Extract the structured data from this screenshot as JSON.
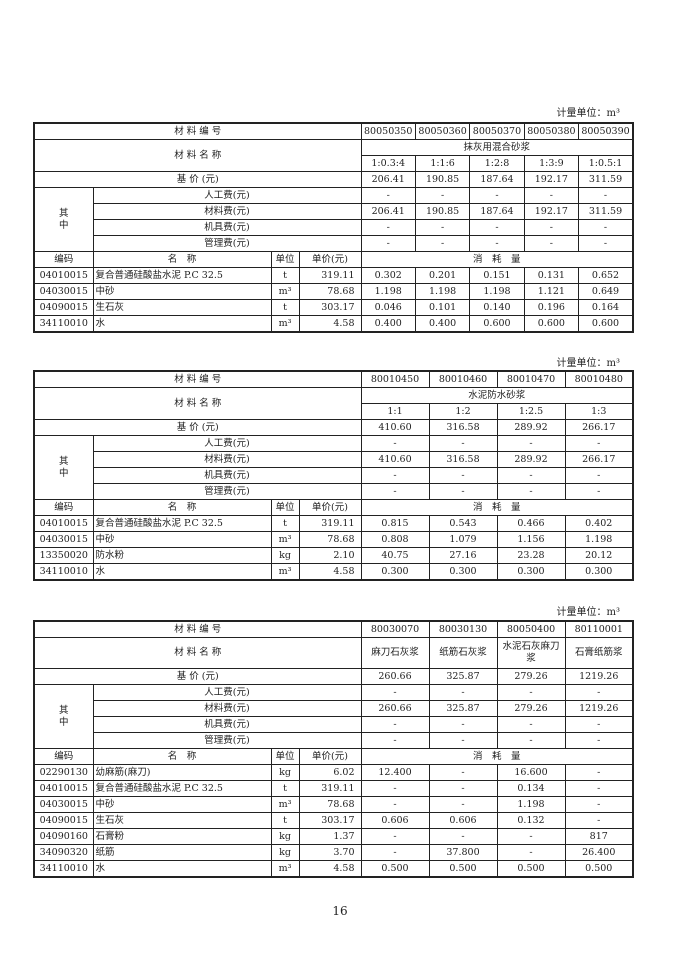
{
  "unit_label": "计量单位：m³",
  "page_number": "16",
  "common": {
    "code_hdr": "材 料 编 号",
    "name_hdr": "材 料 名 称",
    "price_hdr": "基 价 (元)",
    "of_which": "其\n中",
    "sub_rows": [
      "人工费(元)",
      "材料费(元)",
      "机具费(元)",
      "管理费(元)"
    ],
    "col_code": "编码",
    "col_name": "名　称",
    "col_unit": "单位",
    "col_price": "单价(元)",
    "col_consumption": "消　耗　量"
  },
  "tables": [
    {
      "codes": [
        "80050350",
        "80050360",
        "80050370",
        "80050380",
        "80050390"
      ],
      "group_name": "抹灰用混合砂浆",
      "names": [
        "1:0.3:4",
        "1:1:6",
        "1:2:8",
        "1:3:9",
        "1:0.5:1"
      ],
      "base_price": [
        "206.41",
        "190.85",
        "187.64",
        "192.17",
        "311.59"
      ],
      "sub_values": [
        [
          "-",
          "-",
          "-",
          "-",
          "-"
        ],
        [
          "206.41",
          "190.85",
          "187.64",
          "192.17",
          "311.59"
        ],
        [
          "-",
          "-",
          "-",
          "-",
          "-"
        ],
        [
          "-",
          "-",
          "-",
          "-",
          "-"
        ]
      ],
      "rows": [
        {
          "code": "04010015",
          "name": "复合普通硅酸盐水泥 P.C 32.5",
          "unit": "t",
          "price": "319.11",
          "values": [
            "0.302",
            "0.201",
            "0.151",
            "0.131",
            "0.652"
          ]
        },
        {
          "code": "04030015",
          "name": "中砂",
          "unit": "m³",
          "price": "78.68",
          "values": [
            "1.198",
            "1.198",
            "1.198",
            "1.121",
            "0.649"
          ]
        },
        {
          "code": "04090015",
          "name": "生石灰",
          "unit": "t",
          "price": "303.17",
          "values": [
            "0.046",
            "0.101",
            "0.140",
            "0.196",
            "0.164"
          ]
        },
        {
          "code": "34110010",
          "name": "水",
          "unit": "m³",
          "price": "4.58",
          "values": [
            "0.400",
            "0.400",
            "0.600",
            "0.600",
            "0.600"
          ]
        }
      ]
    },
    {
      "codes": [
        "80010450",
        "80010460",
        "80010470",
        "80010480"
      ],
      "group_name": "水泥防水砂浆",
      "names": [
        "1:1",
        "1:2",
        "1:2.5",
        "1:3"
      ],
      "base_price": [
        "410.60",
        "316.58",
        "289.92",
        "266.17"
      ],
      "sub_values": [
        [
          "-",
          "-",
          "-",
          "-"
        ],
        [
          "410.60",
          "316.58",
          "289.92",
          "266.17"
        ],
        [
          "-",
          "-",
          "-",
          "-"
        ],
        [
          "-",
          "-",
          "-",
          "-"
        ]
      ],
      "rows": [
        {
          "code": "04010015",
          "name": "复合普通硅酸盐水泥 P.C 32.5",
          "unit": "t",
          "price": "319.11",
          "values": [
            "0.815",
            "0.543",
            "0.466",
            "0.402"
          ]
        },
        {
          "code": "04030015",
          "name": "中砂",
          "unit": "m³",
          "price": "78.68",
          "values": [
            "0.808",
            "1.079",
            "1.156",
            "1.198"
          ]
        },
        {
          "code": "13350020",
          "name": "防水粉",
          "unit": "kg",
          "price": "2.10",
          "values": [
            "40.75",
            "27.16",
            "23.28",
            "20.12"
          ]
        },
        {
          "code": "34110010",
          "name": "水",
          "unit": "m³",
          "price": "4.58",
          "values": [
            "0.300",
            "0.300",
            "0.300",
            "0.300"
          ]
        }
      ]
    },
    {
      "codes": [
        "80030070",
        "80030130",
        "80050400",
        "80110001"
      ],
      "names": [
        "麻刀石灰浆",
        "纸筋石灰浆",
        "水泥石灰麻刀浆",
        "石膏纸筋浆"
      ],
      "base_price": [
        "260.66",
        "325.87",
        "279.26",
        "1219.26"
      ],
      "sub_values": [
        [
          "-",
          "-",
          "-",
          "-"
        ],
        [
          "260.66",
          "325.87",
          "279.26",
          "1219.26"
        ],
        [
          "-",
          "-",
          "-",
          "-"
        ],
        [
          "-",
          "-",
          "-",
          "-"
        ]
      ],
      "rows": [
        {
          "code": "02290130",
          "name": "幼麻筋(麻刀)",
          "unit": "kg",
          "price": "6.02",
          "values": [
            "12.400",
            "-",
            "16.600",
            "-"
          ]
        },
        {
          "code": "04010015",
          "name": "复合普通硅酸盐水泥 P.C 32.5",
          "unit": "t",
          "price": "319.11",
          "values": [
            "-",
            "-",
            "0.134",
            "-"
          ]
        },
        {
          "code": "04030015",
          "name": "中砂",
          "unit": "m³",
          "price": "78.68",
          "values": [
            "-",
            "-",
            "1.198",
            "-"
          ]
        },
        {
          "code": "04090015",
          "name": "生石灰",
          "unit": "t",
          "price": "303.17",
          "values": [
            "0.606",
            "0.606",
            "0.132",
            "-"
          ]
        },
        {
          "code": "04090160",
          "name": "石膏粉",
          "unit": "kg",
          "price": "1.37",
          "values": [
            "-",
            "-",
            "-",
            "817"
          ]
        },
        {
          "code": "34090320",
          "name": "纸筋",
          "unit": "kg",
          "price": "3.70",
          "values": [
            "-",
            "37.800",
            "-",
            "26.400"
          ]
        },
        {
          "code": "34110010",
          "name": "水",
          "unit": "m³",
          "price": "4.58",
          "values": [
            "0.500",
            "0.500",
            "0.500",
            "0.500"
          ]
        }
      ]
    }
  ]
}
